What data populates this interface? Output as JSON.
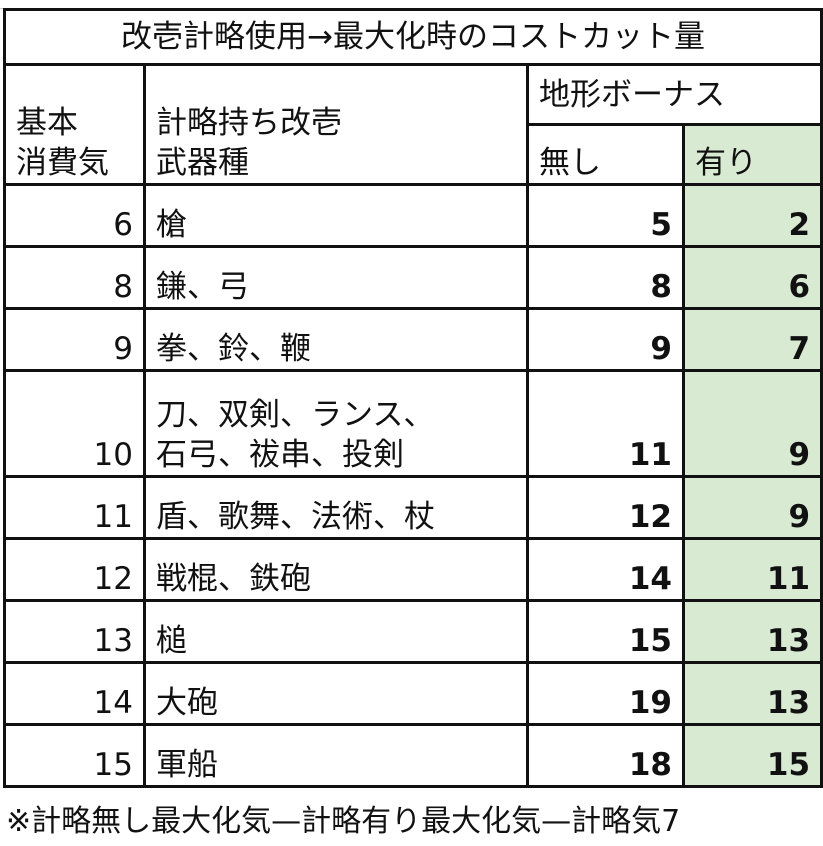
{
  "title": "改壱計略使用→最大化時のコストカット量",
  "headers": {
    "base_cost": [
      "基本",
      "消費気"
    ],
    "weapon_type": [
      "計略持ち改壱",
      "武器種"
    ],
    "terrain_bonus": "地形ボーナス",
    "without": "無し",
    "with": "有り"
  },
  "rows": [
    {
      "base": "6",
      "weapons": [
        "槍"
      ],
      "without": "5",
      "with": "2"
    },
    {
      "base": "8",
      "weapons": [
        "鎌、弓"
      ],
      "without": "8",
      "with": "6"
    },
    {
      "base": "9",
      "weapons": [
        "拳、鈴、鞭"
      ],
      "without": "9",
      "with": "7"
    },
    {
      "base": "10",
      "weapons": [
        "刀、双剣、ランス、",
        "石弓、祓串、投剣"
      ],
      "without": "11",
      "with": "9"
    },
    {
      "base": "11",
      "weapons": [
        "盾、歌舞、法術、杖"
      ],
      "without": "12",
      "with": "9"
    },
    {
      "base": "12",
      "weapons": [
        "戦棍、鉄砲"
      ],
      "without": "14",
      "with": "11"
    },
    {
      "base": "13",
      "weapons": [
        "槌"
      ],
      "without": "15",
      "with": "13"
    },
    {
      "base": "14",
      "weapons": [
        "大砲"
      ],
      "without": "19",
      "with": "13"
    },
    {
      "base": "15",
      "weapons": [
        "軍船"
      ],
      "without": "18",
      "with": "15"
    }
  ],
  "footnote": "※計略無し最大化気—計略有り最大化気—計略気7",
  "colors": {
    "highlight": "#d9ead3",
    "border": "#111111"
  }
}
